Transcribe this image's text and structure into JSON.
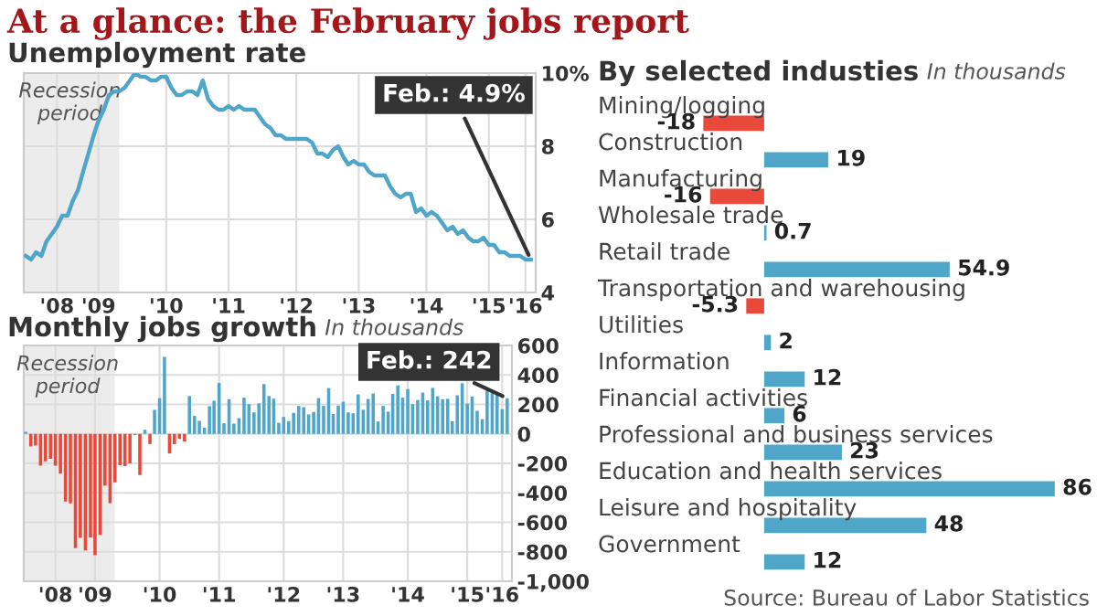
{
  "chart_data": [
    {
      "type": "line",
      "title": "At a glance: the February jobs report",
      "subtitle": "Unemployment rate",
      "x": [
        "2008-01",
        "2008-02",
        "2008-03",
        "2008-04",
        "2008-05",
        "2008-06",
        "2008-07",
        "2008-08",
        "2008-09",
        "2008-10",
        "2008-11",
        "2008-12",
        "2009-01",
        "2009-02",
        "2009-03",
        "2009-04",
        "2009-05",
        "2009-06",
        "2009-07",
        "2009-08",
        "2009-09",
        "2009-10",
        "2009-11",
        "2009-12",
        "2010-01",
        "2010-02",
        "2010-03",
        "2010-04",
        "2010-05",
        "2010-06",
        "2010-07",
        "2010-08",
        "2010-09",
        "2010-10",
        "2010-11",
        "2010-12",
        "2011-01",
        "2011-02",
        "2011-03",
        "2011-04",
        "2011-05",
        "2011-06",
        "2011-07",
        "2011-08",
        "2011-09",
        "2011-10",
        "2011-11",
        "2011-12",
        "2012-01",
        "2012-02",
        "2012-03",
        "2012-04",
        "2012-05",
        "2012-06",
        "2012-07",
        "2012-08",
        "2012-09",
        "2012-10",
        "2012-11",
        "2012-12",
        "2013-01",
        "2013-02",
        "2013-03",
        "2013-04",
        "2013-05",
        "2013-06",
        "2013-07",
        "2013-08",
        "2013-09",
        "2013-10",
        "2013-11",
        "2013-12",
        "2014-01",
        "2014-02",
        "2014-03",
        "2014-04",
        "2014-05",
        "2014-06",
        "2014-07",
        "2014-08",
        "2014-09",
        "2014-10",
        "2014-11",
        "2014-12",
        "2015-01",
        "2015-02",
        "2015-03",
        "2015-04",
        "2015-05",
        "2015-06",
        "2015-07",
        "2015-08",
        "2015-09",
        "2015-10",
        "2015-11",
        "2015-12",
        "2016-01",
        "2016-02"
      ],
      "series": [
        {
          "color": "#4fa6c9",
          "values": [
            5.0,
            4.9,
            5.1,
            5.0,
            5.4,
            5.6,
            5.8,
            6.1,
            6.1,
            6.5,
            6.8,
            7.3,
            7.8,
            8.3,
            8.7,
            9.0,
            9.4,
            9.5,
            9.5,
            9.6,
            9.8,
            10.0,
            9.9,
            9.9,
            9.8,
            9.8,
            9.9,
            9.9,
            9.6,
            9.4,
            9.4,
            9.5,
            9.5,
            9.4,
            9.8,
            9.3,
            9.1,
            9.0,
            9.0,
            9.1,
            9.0,
            9.1,
            9.0,
            9.0,
            9.0,
            8.8,
            8.6,
            8.5,
            8.3,
            8.3,
            8.2,
            8.2,
            8.2,
            8.2,
            8.2,
            8.1,
            7.8,
            7.8,
            7.7,
            7.9,
            8.0,
            7.7,
            7.5,
            7.6,
            7.5,
            7.5,
            7.3,
            7.2,
            7.2,
            7.2,
            6.9,
            6.7,
            6.6,
            6.7,
            6.7,
            6.2,
            6.3,
            6.1,
            6.2,
            6.1,
            5.9,
            5.7,
            5.8,
            5.6,
            5.7,
            5.5,
            5.4,
            5.4,
            5.5,
            5.3,
            5.3,
            5.1,
            5.1,
            5.0,
            5.0,
            5.0,
            4.9,
            4.9
          ]
        }
      ],
      "xlim": [
        "2007-12-20",
        "2016-03-01"
      ],
      "xticks": [
        {
          "value": "2008-07-01",
          "label": "'08"
        },
        {
          "value": "2009-03-01",
          "label": "'09"
        },
        {
          "value": "2010-04-01",
          "label": "'10"
        },
        {
          "value": "2011-04-01",
          "label": "'11"
        },
        {
          "value": "2012-05-01",
          "label": "'12"
        },
        {
          "value": "2013-05-01",
          "label": "'13"
        },
        {
          "value": "2014-06-01",
          "label": "'14"
        },
        {
          "value": "2015-06-01",
          "label": "'15"
        },
        {
          "value": "2016-01-01",
          "label": "'16"
        }
      ],
      "ylim": [
        4,
        10
      ],
      "yticks": [
        4,
        6,
        8,
        {
          "value": 10,
          "label": "10%"
        }
      ],
      "grid": true,
      "bands": [
        {
          "axis": "x",
          "from": "2007-12-01",
          "to": "2009-06-30",
          "label": "Recession period",
          "color": "#ececec"
        }
      ],
      "annotations": [
        {
          "text": "Feb.: 4.9%",
          "x": "2016-02",
          "y": 4.9
        }
      ]
    },
    {
      "type": "bar",
      "title": "Monthly jobs growth",
      "subtitle": "In thousands",
      "x": [
        "2008-01",
        "2008-02",
        "2008-03",
        "2008-04",
        "2008-05",
        "2008-06",
        "2008-07",
        "2008-08",
        "2008-09",
        "2008-10",
        "2008-11",
        "2008-12",
        "2009-01",
        "2009-02",
        "2009-03",
        "2009-04",
        "2009-05",
        "2009-06",
        "2009-07",
        "2009-08",
        "2009-09",
        "2009-10",
        "2009-11",
        "2009-12",
        "2010-01",
        "2010-02",
        "2010-03",
        "2010-04",
        "2010-05",
        "2010-06",
        "2010-07",
        "2010-08",
        "2010-09",
        "2010-10",
        "2010-11",
        "2010-12",
        "2011-01",
        "2011-02",
        "2011-03",
        "2011-04",
        "2011-05",
        "2011-06",
        "2011-07",
        "2011-08",
        "2011-09",
        "2011-10",
        "2011-11",
        "2011-12",
        "2012-01",
        "2012-02",
        "2012-03",
        "2012-04",
        "2012-05",
        "2012-06",
        "2012-07",
        "2012-08",
        "2012-09",
        "2012-10",
        "2012-11",
        "2012-12",
        "2013-01",
        "2013-02",
        "2013-03",
        "2013-04",
        "2013-05",
        "2013-06",
        "2013-07",
        "2013-08",
        "2013-09",
        "2013-10",
        "2013-11",
        "2013-12",
        "2014-01",
        "2014-02",
        "2014-03",
        "2014-04",
        "2014-05",
        "2014-06",
        "2014-07",
        "2014-08",
        "2014-09",
        "2014-10",
        "2014-11",
        "2014-12",
        "2015-01",
        "2015-02",
        "2015-03",
        "2015-04",
        "2015-05",
        "2015-06",
        "2015-07",
        "2015-08",
        "2015-09",
        "2015-10",
        "2015-11",
        "2015-12",
        "2016-01",
        "2016-02"
      ],
      "values": [
        14,
        -85,
        -79,
        -215,
        -186,
        -169,
        -216,
        -270,
        -459,
        -472,
        -775,
        -705,
        -791,
        -703,
        -823,
        -686,
        -351,
        -470,
        -329,
        -212,
        -219,
        -200,
        -7,
        -279,
        28,
        -69,
        163,
        243,
        522,
        -133,
        -70,
        -34,
        -52,
        257,
        123,
        88,
        42,
        188,
        225,
        346,
        73,
        235,
        70,
        107,
        246,
        202,
        146,
        207,
        338,
        257,
        239,
        75,
        115,
        87,
        143,
        190,
        181,
        132,
        149,
        243,
        190,
        311,
        135,
        192,
        218,
        146,
        140,
        268,
        164,
        237,
        274,
        84,
        190,
        151,
        272,
        329,
        246,
        304,
        202,
        230,
        280,
        227,
        312,
        255,
        234,
        238,
        86,
        262,
        344,
        206,
        254,
        157,
        100,
        295,
        280,
        271,
        168,
        242
      ],
      "colors": [
        "#4fa6c9",
        "#e8493a",
        "#e8493a",
        "#e8493a",
        "#e8493a",
        "#e8493a",
        "#e8493a",
        "#e8493a",
        "#e8493a",
        "#e8493a",
        "#e8493a",
        "#e8493a",
        "#e8493a",
        "#e8493a",
        "#e8493a",
        "#e8493a",
        "#e8493a",
        "#e8493a",
        "#e8493a",
        "#e8493a",
        "#e8493a",
        "#e8493a",
        "#e8493a",
        "#e8493a",
        "#4fa6c9",
        "#e8493a",
        "#4fa6c9",
        "#4fa6c9",
        "#4fa6c9",
        "#e8493a",
        "#e8493a",
        "#e8493a",
        "#e8493a",
        "#4fa6c9",
        "#4fa6c9",
        "#4fa6c9",
        "#4fa6c9",
        "#4fa6c9",
        "#4fa6c9",
        "#4fa6c9",
        "#4fa6c9",
        "#4fa6c9",
        "#4fa6c9",
        "#4fa6c9",
        "#4fa6c9",
        "#4fa6c9",
        "#4fa6c9",
        "#4fa6c9",
        "#4fa6c9",
        "#4fa6c9",
        "#4fa6c9",
        "#4fa6c9",
        "#4fa6c9",
        "#4fa6c9",
        "#4fa6c9",
        "#4fa6c9",
        "#4fa6c9",
        "#4fa6c9",
        "#4fa6c9",
        "#4fa6c9",
        "#4fa6c9",
        "#4fa6c9",
        "#4fa6c9",
        "#4fa6c9",
        "#4fa6c9",
        "#4fa6c9",
        "#4fa6c9",
        "#4fa6c9",
        "#4fa6c9",
        "#4fa6c9",
        "#4fa6c9",
        "#4fa6c9",
        "#4fa6c9",
        "#4fa6c9",
        "#4fa6c9",
        "#4fa6c9",
        "#4fa6c9",
        "#4fa6c9",
        "#4fa6c9",
        "#4fa6c9",
        "#4fa6c9",
        "#4fa6c9",
        "#4fa6c9",
        "#4fa6c9",
        "#4fa6c9",
        "#4fa6c9",
        "#4fa6c9",
        "#4fa6c9",
        "#4fa6c9",
        "#4fa6c9",
        "#4fa6c9",
        "#4fa6c9",
        "#4fa6c9",
        "#4fa6c9",
        "#4fa6c9",
        "#4fa6c9",
        "#4fa6c9",
        "#4fa6c9"
      ],
      "xlim": [
        "2007-12-20",
        "2016-03-01"
      ],
      "xticks": [
        {
          "value": "2008-07-01",
          "label": "'08"
        },
        {
          "value": "2009-03-01",
          "label": "'09"
        },
        {
          "value": "2010-04-01",
          "label": "'10"
        },
        {
          "value": "2011-04-01",
          "label": "'11"
        },
        {
          "value": "2012-05-01",
          "label": "'12"
        },
        {
          "value": "2013-05-01",
          "label": "'13"
        },
        {
          "value": "2014-06-01",
          "label": "'14"
        },
        {
          "value": "2015-06-01",
          "label": "'15"
        },
        {
          "value": "2016-01-01",
          "label": "'16"
        }
      ],
      "ylim": [
        -1000,
        600
      ],
      "yticks": [
        600,
        400,
        200,
        0,
        -200,
        -400,
        -600,
        -800,
        {
          "value": -1000,
          "label": "-1,000"
        }
      ],
      "grid": true,
      "bands": [
        {
          "axis": "x",
          "from": "2007-12-01",
          "to": "2009-06-30",
          "label": "Recession period",
          "color": "#ececec"
        }
      ],
      "annotations": [
        {
          "text": "Feb.: 242",
          "x": "2016-02",
          "y": 242
        }
      ]
    },
    {
      "type": "bar",
      "orientation": "horizontal",
      "title": "By selected industies",
      "subtitle": "In thousands",
      "categories": [
        "Mining/logging",
        "Construction",
        "Manufacturing",
        "Wholesale trade",
        "Retail trade",
        "Transportation and warehousing",
        "Utilities",
        "Information",
        "Financial activities",
        "Professional and business services",
        "Education and health services",
        "Leisure and hospitality",
        "Government"
      ],
      "values": [
        -18,
        19,
        -16,
        0.7,
        54.9,
        -5.3,
        2,
        12,
        6,
        23,
        86,
        48,
        12
      ],
      "colors": [
        "#e8493a",
        "#4fa6c9",
        "#e8493a",
        "#4fa6c9",
        "#4fa6c9",
        "#e8493a",
        "#4fa6c9",
        "#4fa6c9",
        "#4fa6c9",
        "#4fa6c9",
        "#4fa6c9",
        "#4fa6c9",
        "#4fa6c9"
      ],
      "data_labels": true,
      "annotations": [
        "Source: Bureau of Labor Statistics"
      ]
    }
  ]
}
